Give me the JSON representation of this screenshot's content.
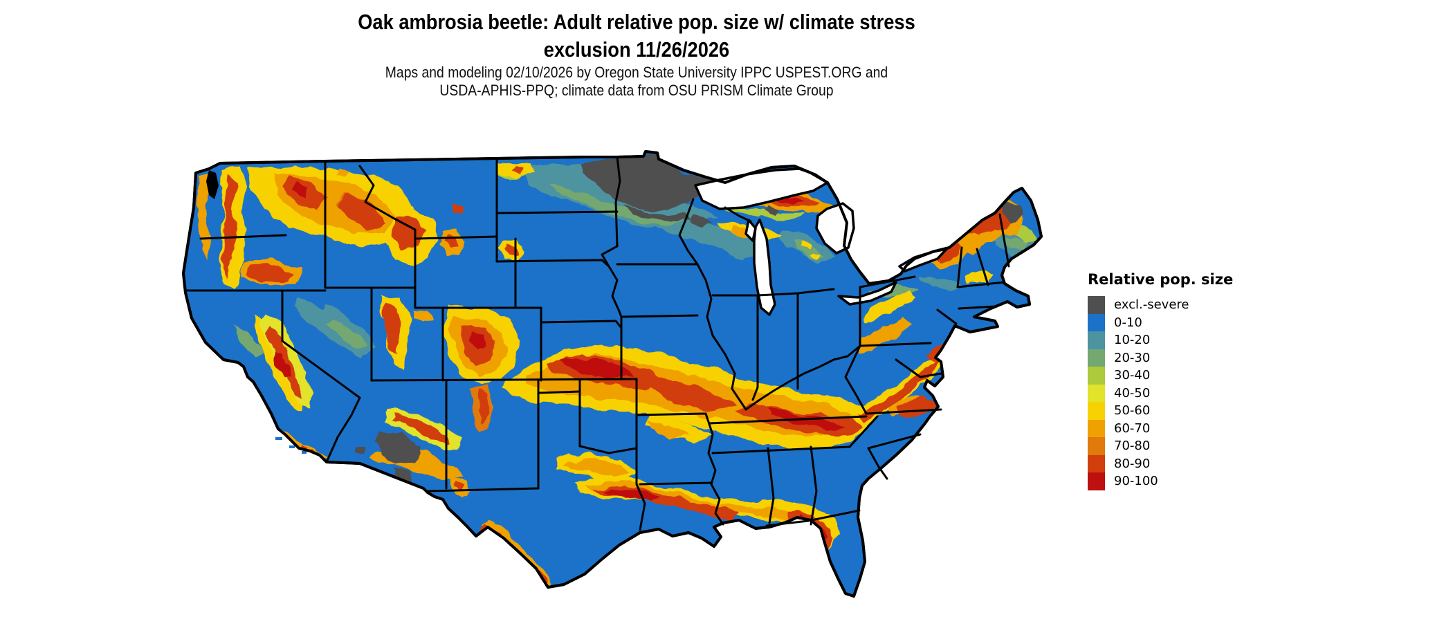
{
  "title": {
    "line1": "Oak ambrosia beetle: Adult relative pop. size w/ climate stress",
    "line2": "exclusion 11/26/2026"
  },
  "subtitle": {
    "line1": "Maps and modeling 02/10/2026 by Oregon State University IPPC USPEST.ORG and",
    "line2": "USDA-APHIS-PPQ; climate data from OSU PRISM Climate Group"
  },
  "legend": {
    "title": "Relative pop. size",
    "items": [
      {
        "label": "excl.-severe",
        "color": "#4f4f4f"
      },
      {
        "label": "0-10",
        "color": "#1b72c8"
      },
      {
        "label": "10-20",
        "color": "#4e93a0"
      },
      {
        "label": "20-30",
        "color": "#74a871"
      },
      {
        "label": "30-40",
        "color": "#adc93c"
      },
      {
        "label": "40-50",
        "color": "#e2e32b"
      },
      {
        "label": "50-60",
        "color": "#f7d203"
      },
      {
        "label": "60-70",
        "color": "#efa102"
      },
      {
        "label": "70-80",
        "color": "#e07a0b"
      },
      {
        "label": "80-90",
        "color": "#d23e0c"
      },
      {
        "label": "90-100",
        "color": "#bf1010"
      }
    ]
  },
  "map": {
    "kind": "conus-raster-choropleth",
    "base_color": "#1b72c8",
    "excluded_color": "#4f4f4f",
    "border_color": "#000000",
    "background": "#ffffff",
    "excluded_regions_visible": [
      "northern Minnesota",
      "southern Arizona desert",
      "northern Maine spots"
    ],
    "high_population_regions_visible": [
      "Cascades",
      "Northern Rockies",
      "Colorado Rockies",
      "Sierra Nevada",
      "Kansas-Missouri belt",
      "Kentucky-Tennessee belt",
      "Appalachians/Virginia",
      "Gulf coast of Texas-Louisiana",
      "Florida panhandle",
      "Upper Michigan",
      "northern New England",
      "Adirondacks"
    ]
  }
}
